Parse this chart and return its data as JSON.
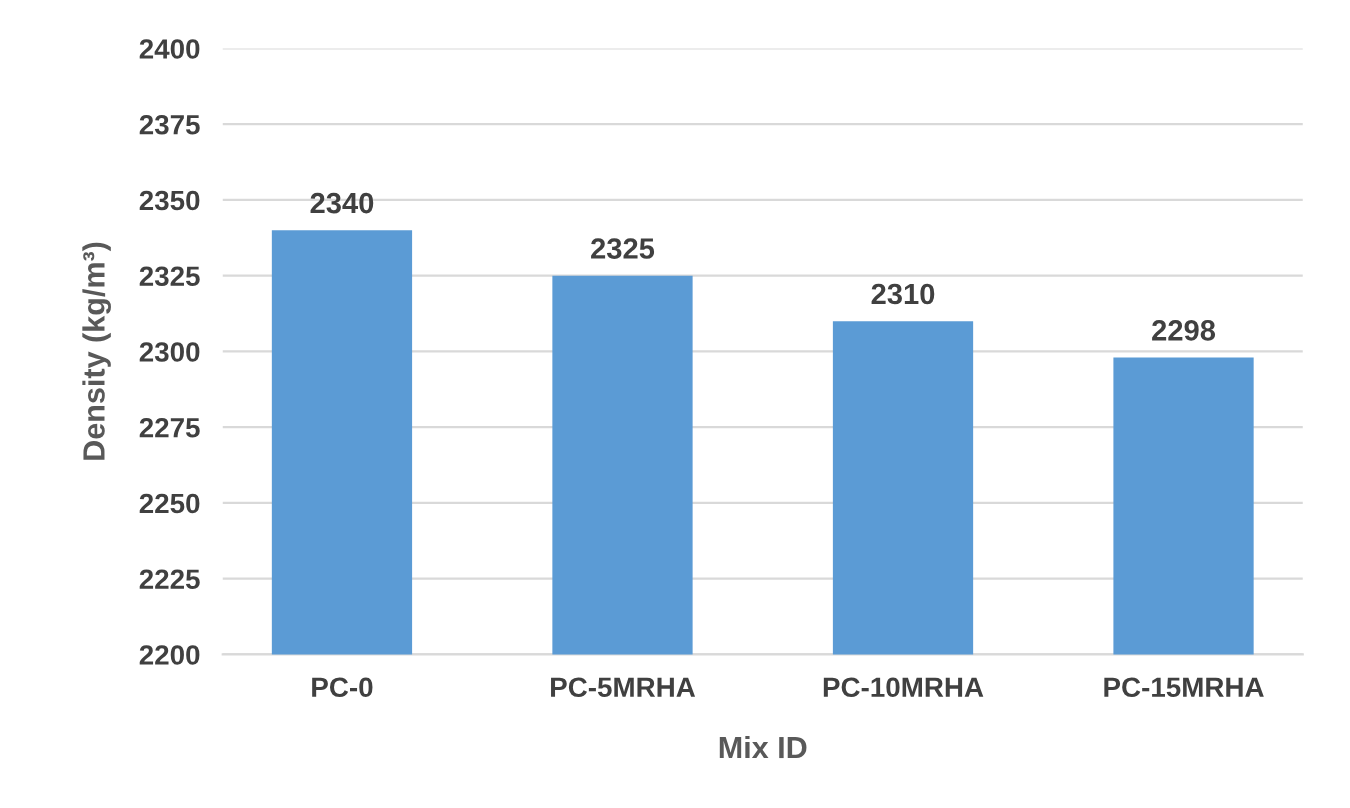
{
  "chart_data": {
    "type": "bar",
    "xlabel": "Mix ID",
    "ylabel": "Density (kg/m³)",
    "categories": [
      "PC-0",
      "PC-5MRHA",
      "PC-10MRHA",
      "PC-15MRHA"
    ],
    "values": [
      2340,
      2325,
      2310,
      2298
    ],
    "color": "#5b9bd5",
    "ylim": [
      2200,
      2400
    ],
    "yticks": [
      2200,
      2225,
      2250,
      2275,
      2300,
      2325,
      2350,
      2375,
      2400
    ],
    "grid": "y",
    "data_labels": true,
    "legend": false
  }
}
